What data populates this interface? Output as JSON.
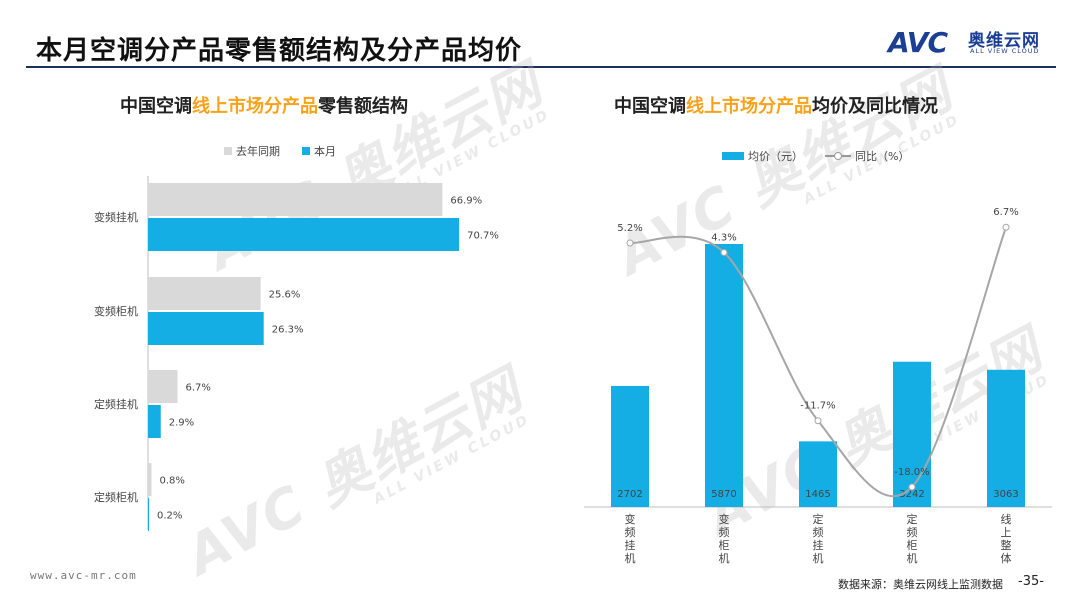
{
  "page": {
    "title": "本月空调分产品零售额结构及分产品均价",
    "url": "www.avc-mr.com",
    "source": "数据来源：奥维云网线上监测数据",
    "page_number": "-35-"
  },
  "logo": {
    "mark": "AVC",
    "cn": "奥维云网",
    "en": "ALL VIEW CLOUD"
  },
  "watermark": {
    "main": "AVC 奥维云网",
    "sub": "ALL VIEW CLOUD"
  },
  "colors": {
    "accent": "#f7a21a",
    "bar_current": "#15aee4",
    "bar_last_year": "#d9d9d9",
    "line": "#a6a6a6",
    "title_rule": "#1c2f5b"
  },
  "left_chart": {
    "title_pre": "中国空调",
    "title_hl": "线上市场分产品",
    "title_post": "零售额结构"
  },
  "right_chart": {
    "title_pre": "中国空调",
    "title_hl": "线上市场分产品",
    "title_post": "均价及同比情况"
  },
  "chart_data": [
    {
      "type": "bar",
      "orientation": "horizontal",
      "title": "中国空调线上市场分产品零售额结构",
      "categories": [
        "变频挂机",
        "变频柜机",
        "定频挂机",
        "定频柜机"
      ],
      "series": [
        {
          "name": "去年同期",
          "values": [
            66.9,
            25.6,
            6.7,
            0.8
          ],
          "labels": [
            "66.9%",
            "25.6%",
            "6.7%",
            "0.8%"
          ]
        },
        {
          "name": "本月",
          "values": [
            70.7,
            26.3,
            2.9,
            0.2
          ],
          "labels": [
            "70.7%",
            "26.3%",
            "2.9%",
            "0.2%"
          ]
        }
      ],
      "xlim": [
        0,
        100
      ],
      "legend": "top"
    },
    {
      "type": "bar+line",
      "title": "中国空调线上市场分产品均价及同比情况",
      "categories": [
        "变频挂机",
        "变频柜机",
        "定频挂机",
        "定频柜机",
        "线上整体"
      ],
      "bar_series": {
        "name": "均价（元）",
        "values": [
          2702,
          5870,
          1465,
          3242,
          3063
        ],
        "labels": [
          "2702",
          "5870",
          "1465",
          "3242",
          "3063"
        ]
      },
      "line_series": {
        "name": "同比（%）",
        "values": [
          5.2,
          4.3,
          -11.7,
          -18.0,
          6.7
        ],
        "labels": [
          "5.2%",
          "4.3%",
          "-11.7%",
          "-18.0%",
          "6.7%"
        ]
      },
      "bar_ylim": [
        0,
        6500
      ],
      "line_ylim": [
        -20,
        10
      ],
      "legend": "top"
    }
  ]
}
